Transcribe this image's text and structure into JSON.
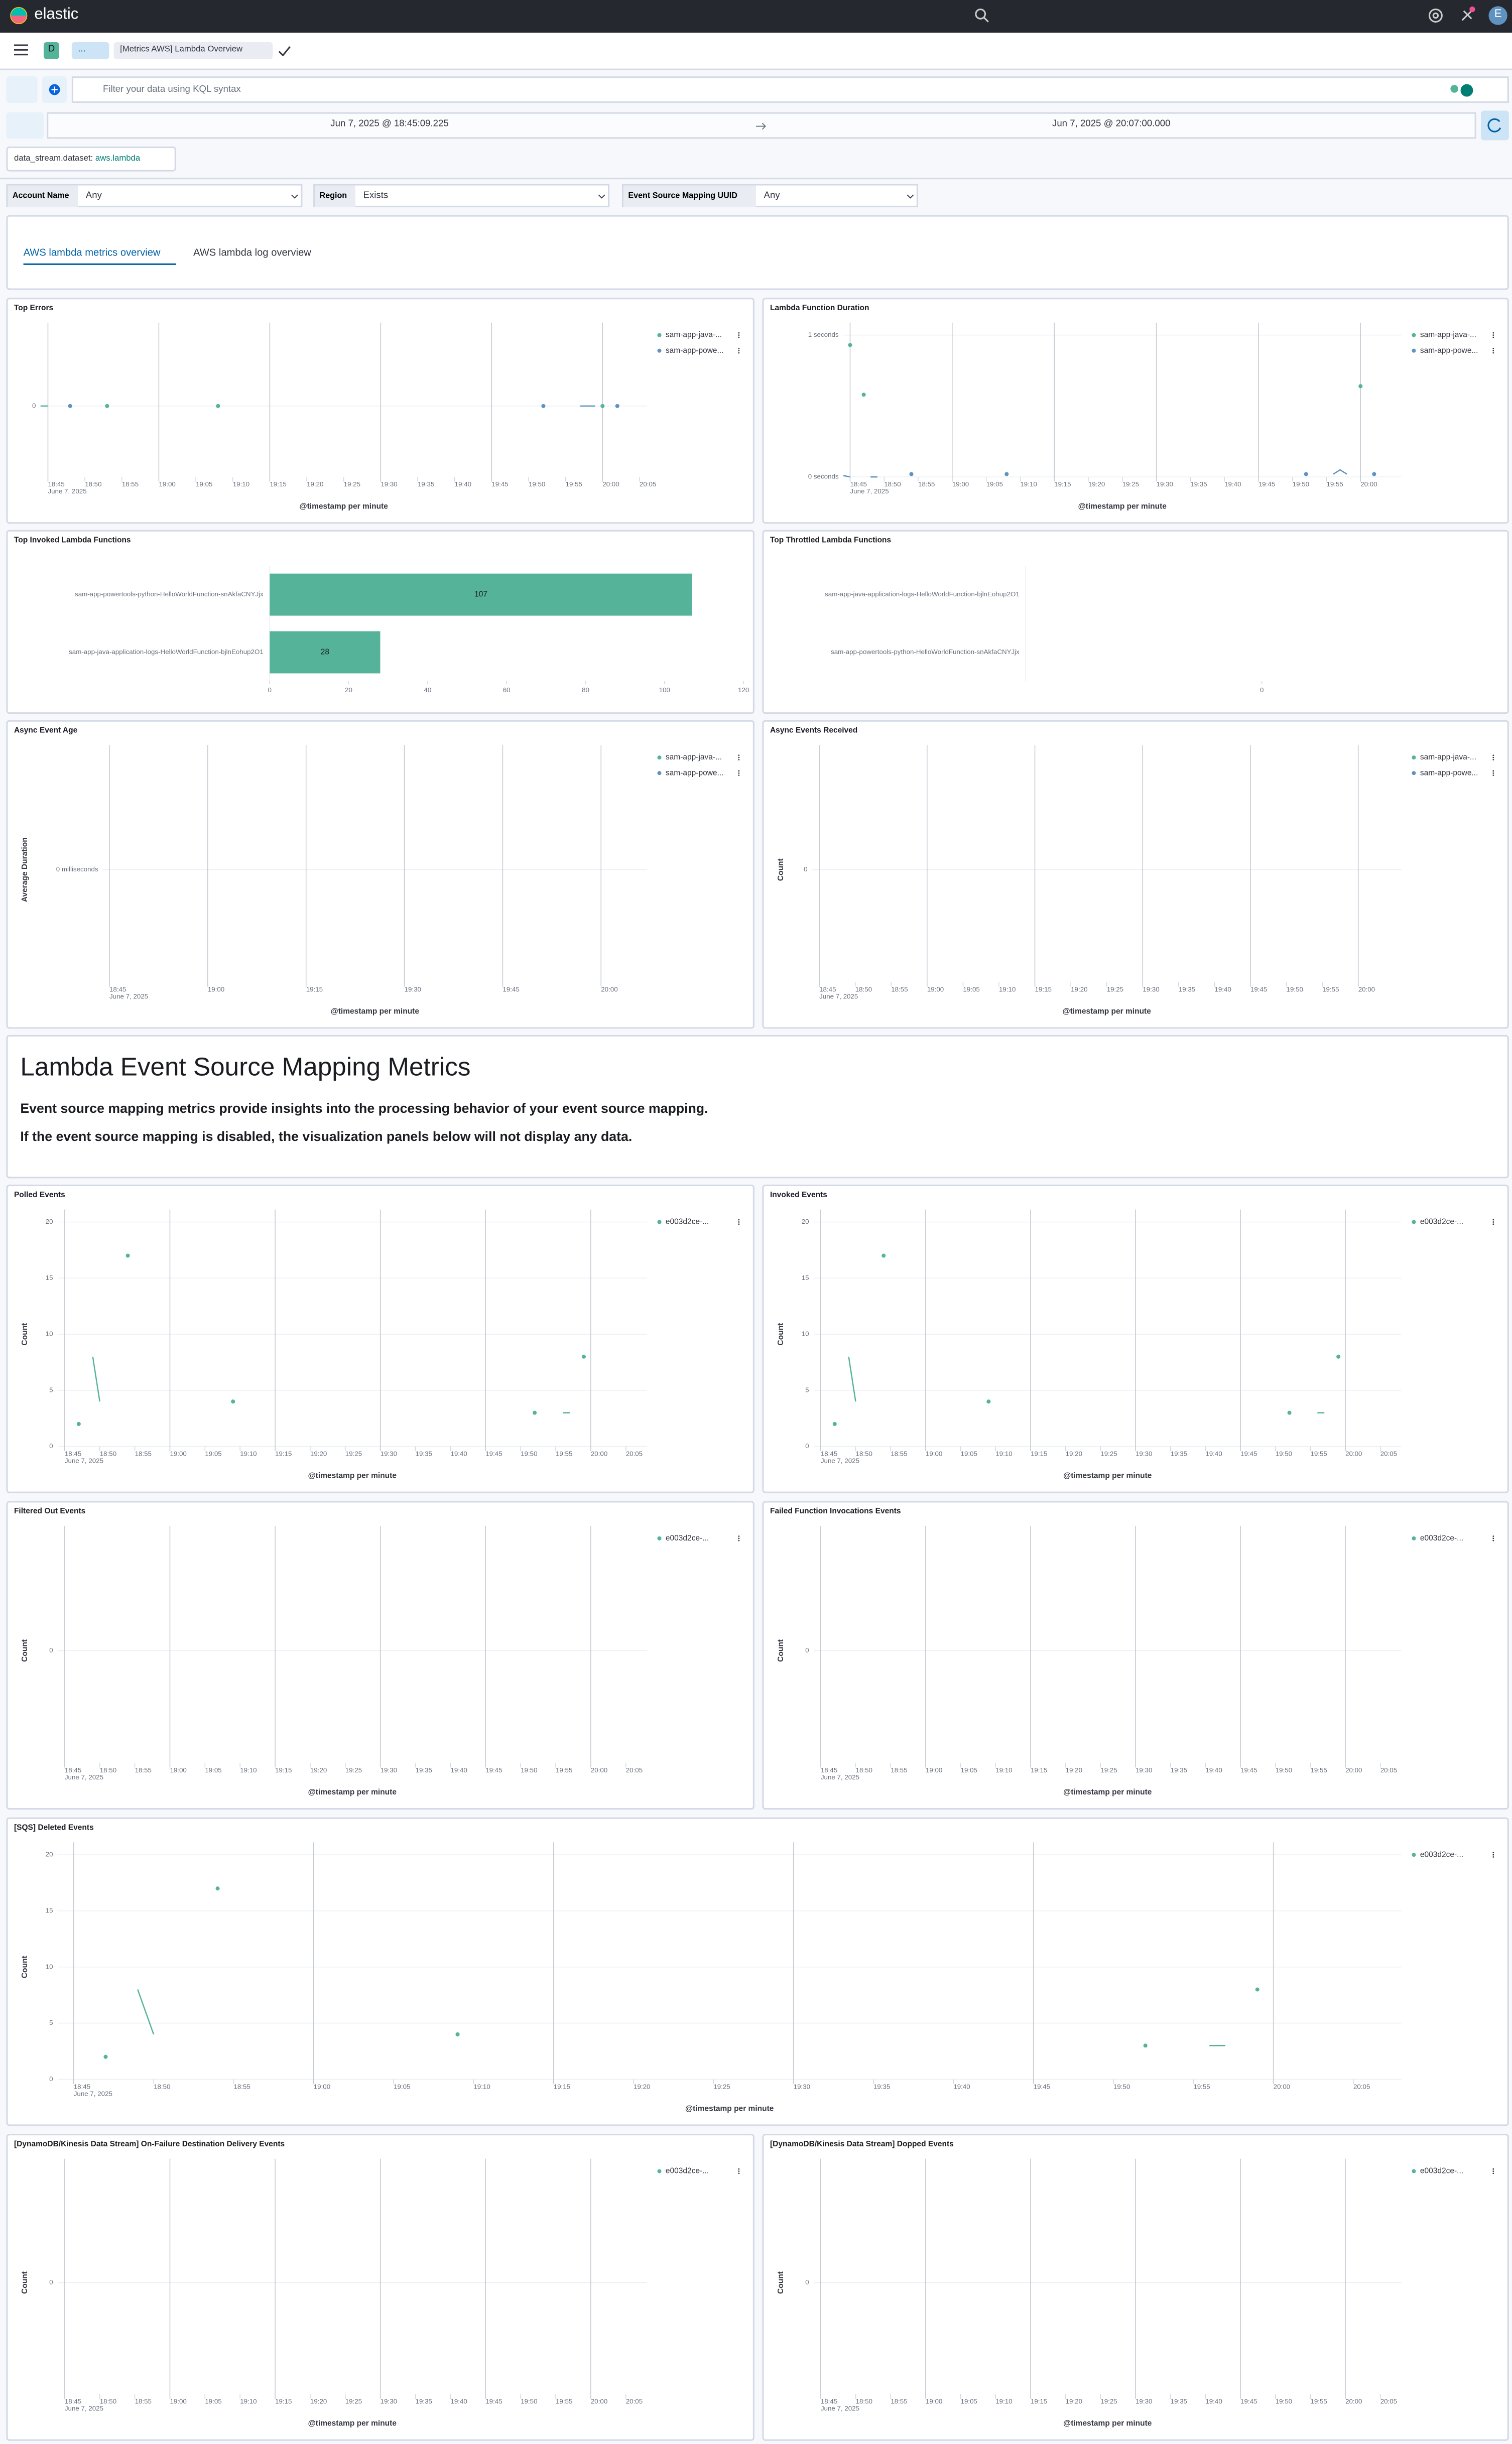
{
  "header": {
    "logo": "elastic",
    "space": "D",
    "breadcrumb_ellipsis": "...",
    "breadcrumb": "[Metrics AWS] Lambda Overview",
    "avatar": "E"
  },
  "query": {
    "placeholder": "Filter your data using KQL syntax",
    "start": "Jun 7, 2025 @ 18:45:09.225",
    "end": "Jun 7, 2025 @ 20:07:00.000"
  },
  "filter_pill": {
    "field": "data_stream.dataset:",
    "value": "aws.lambda"
  },
  "controls": [
    {
      "label": "Account Name",
      "value": "Any"
    },
    {
      "label": "Region",
      "value": "Exists"
    },
    {
      "label": "Event Source Mapping UUID",
      "value": "Any"
    }
  ],
  "tabs": [
    "AWS lambda metrics overview",
    "AWS lambda log overview"
  ],
  "section": {
    "title": "Lambda Event Source Mapping Metrics",
    "paragraphs": [
      "Event source mapping metrics provide insights into the processing behavior of your event source mapping.",
      "If the event source mapping is disabled, the visualization panels below will not display any data."
    ]
  },
  "chart_data": [
    {
      "type": "line",
      "title": "Top Errors",
      "x_label": "@timestamp per minute",
      "x_sublabel": "June 7, 2025",
      "xlim": [
        "18:44",
        "20:06"
      ],
      "xticks": [
        "18:45",
        "18:50",
        "18:55",
        "19:00",
        "19:05",
        "19:10",
        "19:15",
        "19:20",
        "19:25",
        "19:30",
        "19:35",
        "19:40",
        "19:45",
        "19:50",
        "19:55",
        "20:00",
        "20:05"
      ],
      "ylim": [
        -1,
        1
      ],
      "yticks": [
        0
      ],
      "series": [
        {
          "name": "sam-app-java-...",
          "color": "#54b399",
          "x": [
            "18:44",
            "18:45",
            "18:53",
            "19:08",
            "20:00"
          ],
          "values": [
            0,
            0,
            0,
            0,
            0
          ]
        },
        {
          "name": "sam-app-powe...",
          "color": "#6092c0",
          "x": [
            "18:48",
            "19:52",
            "19:57",
            "19:58",
            "19:59",
            "20:02"
          ],
          "values": [
            0,
            0,
            0,
            0,
            0,
            0
          ]
        }
      ]
    },
    {
      "type": "line",
      "title": "Lambda Function Duration",
      "x_label": "@timestamp per minute",
      "x_sublabel": "June 7, 2025",
      "xlim": [
        "18:44",
        "20:06"
      ],
      "xticks": [
        "18:45",
        "18:50",
        "18:55",
        "19:00",
        "19:05",
        "19:10",
        "19:15",
        "19:20",
        "19:25",
        "19:30",
        "19:35",
        "19:40",
        "19:45",
        "19:50",
        "19:55",
        "20:00"
      ],
      "ylim": [
        0,
        1
      ],
      "yticks": [
        {
          "value": 1,
          "label": "1 seconds"
        },
        {
          "value": 0,
          "label": "0 seconds"
        }
      ],
      "series": [
        {
          "name": "sam-app-java-...",
          "color": "#54b399",
          "x": [
            "18:45",
            "18:47",
            "20:00"
          ],
          "values": [
            0.93,
            0.58,
            0.64
          ]
        },
        {
          "name": "sam-app-powe...",
          "color": "#6092c0",
          "x": [
            "18:44",
            "18:45",
            "18:48",
            "18:49",
            "18:54",
            "19:08",
            "19:52",
            "19:56",
            "19:57",
            "19:58",
            "20:02"
          ],
          "values": [
            0.01,
            0,
            0,
            0,
            0.02,
            0.02,
            0.02,
            0.02,
            0.05,
            0.02,
            0.02
          ]
        }
      ]
    },
    {
      "type": "bar",
      "orientation": "horizontal",
      "title": "Top Invoked Lambda Functions",
      "categories": [
        "sam-app-powertools-python-HelloWorldFunction-snAkfaCNYJjx",
        "sam-app-java-application-logs-HelloWorldFunction-bjlnEohup2O1"
      ],
      "values": [
        107,
        28
      ],
      "color": "#54b399",
      "xlim": [
        0,
        120
      ],
      "xticks": [
        0,
        20,
        40,
        60,
        80,
        100,
        120
      ]
    },
    {
      "type": "bar",
      "orientation": "horizontal",
      "title": "Top Throttled Lambda Functions",
      "categories": [
        "sam-app-java-application-logs-HelloWorldFunction-bjlnEohup2O1",
        "sam-app-powertools-python-HelloWorldFunction-snAkfaCNYJjx"
      ],
      "color": "#54b399",
      "xlim": [
        -1,
        1
      ],
      "xticks": [
        0
      ]
    },
    {
      "type": "line",
      "title": "Async Event Age",
      "y_label": "Average Duration",
      "x_label": "@timestamp per minute",
      "x_sublabel": "June 7, 2025",
      "xlim": [
        "18:44",
        "20:07"
      ],
      "xticks": [
        "18:45",
        "19:00",
        "19:15",
        "19:30",
        "19:45",
        "20:00"
      ],
      "ylim": [
        -1,
        1
      ],
      "yticks": [
        {
          "value": 0,
          "label": "0 milliseconds"
        }
      ],
      "series": [
        {
          "name": "sam-app-java-...",
          "color": "#54b399",
          "x": [],
          "values": []
        },
        {
          "name": "sam-app-powe...",
          "color": "#6092c0",
          "x": [],
          "values": []
        }
      ]
    },
    {
      "type": "line",
      "title": "Async Events Received",
      "y_label": "Count",
      "x_label": "@timestamp per minute",
      "x_sublabel": "June 7, 2025",
      "xlim": [
        "18:44",
        "20:06"
      ],
      "xticks": [
        "18:45",
        "18:50",
        "18:55",
        "19:00",
        "19:05",
        "19:10",
        "19:15",
        "19:20",
        "19:25",
        "19:30",
        "19:35",
        "19:40",
        "19:45",
        "19:50",
        "19:55",
        "20:00"
      ],
      "ylim": [
        -1,
        1
      ],
      "yticks": [
        0
      ],
      "series": [
        {
          "name": "sam-app-java-...",
          "color": "#54b399",
          "x": [],
          "values": []
        },
        {
          "name": "sam-app-powe...",
          "color": "#6092c0",
          "x": [],
          "values": []
        }
      ]
    },
    {
      "type": "line",
      "title": "Polled Events",
      "y_label": "Count",
      "x_label": "@timestamp per minute",
      "x_sublabel": "June 7, 2025",
      "xlim": [
        "18:44",
        "20:08"
      ],
      "xticks": [
        "18:45",
        "18:50",
        "18:55",
        "19:00",
        "19:05",
        "19:10",
        "19:15",
        "19:20",
        "19:25",
        "19:30",
        "19:35",
        "19:40",
        "19:45",
        "19:50",
        "19:55",
        "20:00",
        "20:05"
      ],
      "ylim": [
        0,
        20
      ],
      "yticks": [
        0,
        5,
        10,
        15,
        20
      ],
      "series": [
        {
          "name": "e003d2ce-...",
          "color": "#54b399",
          "x": [
            "18:47",
            "18:49",
            "18:50",
            "18:54",
            "19:09",
            "19:52",
            "19:56",
            "19:57",
            "19:59"
          ],
          "values": [
            2,
            8,
            4,
            17,
            4,
            3,
            3,
            3,
            8
          ]
        }
      ]
    },
    {
      "type": "line",
      "title": "Invoked Events",
      "y_label": "Count",
      "x_label": "@timestamp per minute",
      "x_sublabel": "June 7, 2025",
      "xlim": [
        "18:44",
        "20:08"
      ],
      "xticks": [
        "18:45",
        "18:50",
        "18:55",
        "19:00",
        "19:05",
        "19:10",
        "19:15",
        "19:20",
        "19:25",
        "19:30",
        "19:35",
        "19:40",
        "19:45",
        "19:50",
        "19:55",
        "20:00",
        "20:05"
      ],
      "ylim": [
        0,
        20
      ],
      "yticks": [
        0,
        5,
        10,
        15,
        20
      ],
      "series": [
        {
          "name": "e003d2ce-...",
          "color": "#54b399",
          "x": [
            "18:47",
            "18:49",
            "18:50",
            "18:54",
            "19:09",
            "19:52",
            "19:56",
            "19:57",
            "19:59"
          ],
          "values": [
            2,
            8,
            4,
            17,
            4,
            3,
            3,
            3,
            8
          ]
        }
      ]
    },
    {
      "type": "line",
      "title": "Filtered Out Events",
      "y_label": "Count",
      "x_label": "@timestamp per minute",
      "x_sublabel": "June 7, 2025",
      "xlim": [
        "18:44",
        "20:08"
      ],
      "xticks": [
        "18:45",
        "18:50",
        "18:55",
        "19:00",
        "19:05",
        "19:10",
        "19:15",
        "19:20",
        "19:25",
        "19:30",
        "19:35",
        "19:40",
        "19:45",
        "19:50",
        "19:55",
        "20:00",
        "20:05"
      ],
      "ylim": [
        -1,
        1
      ],
      "yticks": [
        0
      ],
      "series": [
        {
          "name": "e003d2ce-...",
          "color": "#54b399",
          "x": [],
          "values": []
        }
      ]
    },
    {
      "type": "line",
      "title": "Failed Function Invocations Events",
      "y_label": "Count",
      "x_label": "@timestamp per minute",
      "x_sublabel": "June 7, 2025",
      "xlim": [
        "18:44",
        "20:08"
      ],
      "xticks": [
        "18:45",
        "18:50",
        "18:55",
        "19:00",
        "19:05",
        "19:10",
        "19:15",
        "19:20",
        "19:25",
        "19:30",
        "19:35",
        "19:40",
        "19:45",
        "19:50",
        "19:55",
        "20:00",
        "20:05"
      ],
      "ylim": [
        -1,
        1
      ],
      "yticks": [
        0
      ],
      "series": [
        {
          "name": "e003d2ce-...",
          "color": "#54b399",
          "x": [],
          "values": []
        }
      ]
    },
    {
      "type": "line",
      "title": "[SQS] Deleted Events",
      "y_label": "Count",
      "x_label": "@timestamp per minute",
      "x_sublabel": "June 7, 2025",
      "xlim": [
        "18:44",
        "20:08"
      ],
      "xticks": [
        "18:45",
        "18:50",
        "18:55",
        "19:00",
        "19:05",
        "19:10",
        "19:15",
        "19:20",
        "19:25",
        "19:30",
        "19:35",
        "19:40",
        "19:45",
        "19:50",
        "19:55",
        "20:00",
        "20:05"
      ],
      "ylim": [
        0,
        20
      ],
      "yticks": [
        0,
        5,
        10,
        15,
        20
      ],
      "series": [
        {
          "name": "e003d2ce-...",
          "color": "#54b399",
          "x": [
            "18:47",
            "18:49",
            "18:50",
            "18:54",
            "19:09",
            "19:52",
            "19:56",
            "19:57",
            "19:59"
          ],
          "values": [
            2,
            8,
            4,
            17,
            4,
            3,
            3,
            3,
            8
          ]
        }
      ]
    },
    {
      "type": "line",
      "title": "[DynamoDB/Kinesis Data Stream] On-Failure Destination Delivery Events",
      "y_label": "Count",
      "x_label": "@timestamp per minute",
      "x_sublabel": "June 7, 2025",
      "xlim": [
        "18:44",
        "20:08"
      ],
      "xticks": [
        "18:45",
        "18:50",
        "18:55",
        "19:00",
        "19:05",
        "19:10",
        "19:15",
        "19:20",
        "19:25",
        "19:30",
        "19:35",
        "19:40",
        "19:45",
        "19:50",
        "19:55",
        "20:00",
        "20:05"
      ],
      "ylim": [
        -1,
        1
      ],
      "yticks": [
        0
      ],
      "series": [
        {
          "name": "e003d2ce-...",
          "color": "#54b399",
          "x": [],
          "values": []
        }
      ]
    },
    {
      "type": "line",
      "title": "[DynamoDB/Kinesis Data Stream] Dopped Events",
      "y_label": "Count",
      "x_label": "@timestamp per minute",
      "x_sublabel": "June 7, 2025",
      "xlim": [
        "18:44",
        "20:08"
      ],
      "xticks": [
        "18:45",
        "18:50",
        "18:55",
        "19:00",
        "19:05",
        "19:10",
        "19:15",
        "19:20",
        "19:25",
        "19:30",
        "19:35",
        "19:40",
        "19:45",
        "19:50",
        "19:55",
        "20:00",
        "20:05"
      ],
      "ylim": [
        -1,
        1
      ],
      "yticks": [
        0
      ],
      "series": [
        {
          "name": "e003d2ce-...",
          "color": "#54b399",
          "x": [],
          "values": []
        }
      ]
    }
  ]
}
